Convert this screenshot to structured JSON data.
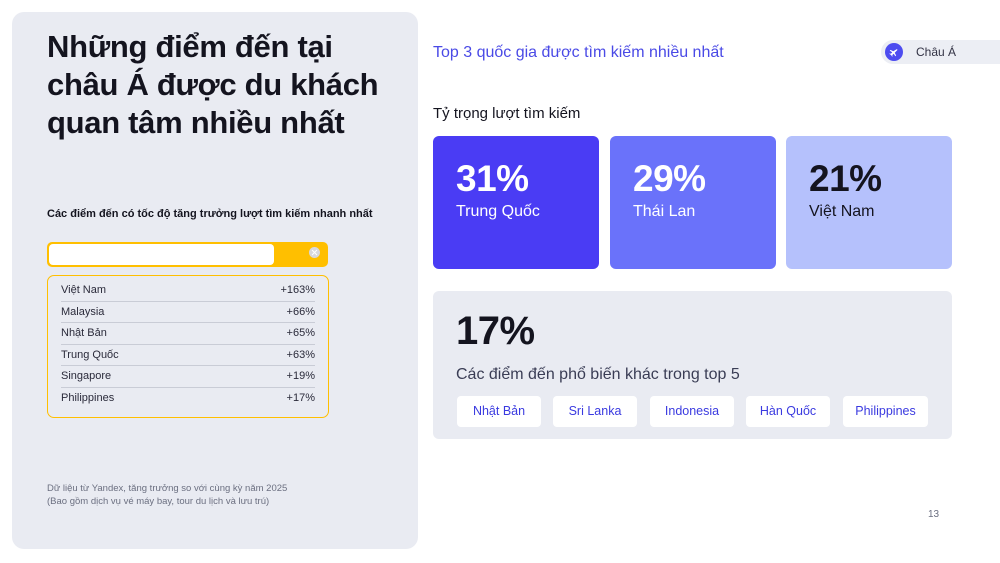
{
  "left": {
    "title": "Những điểm đến tại châu Á được du khách quan tâm nhiều nhất",
    "subheading": "Các điểm đến có tốc độ tăng trưởng lượt tìm kiếm nhanh nhất",
    "search": {
      "value": ""
    },
    "growth": [
      {
        "name": "Việt Nam",
        "value": "+163%"
      },
      {
        "name": "Malaysia",
        "value": "+66%"
      },
      {
        "name": "Nhật Bản",
        "value": "+65%"
      },
      {
        "name": "Trung Quốc",
        "value": "+63%"
      },
      {
        "name": "Singapore",
        "value": "+19%"
      },
      {
        "name": "Philippines",
        "value": "+17%"
      }
    ],
    "footnote_line1": "Dữ liệu từ Yandex, tăng trưởng so với cùng kỳ năm 2025",
    "footnote_line2": "(Bao gồm dịch vụ vé máy bay, tour du lịch và lưu trú)"
  },
  "right": {
    "section_title": "Top 3 quốc gia được tìm kiếm nhiều nhất",
    "region_chip": {
      "label": "Châu Á",
      "icon": "plane-icon"
    },
    "share_title": "Tỷ trọng lượt tìm kiếm",
    "top3": [
      {
        "value": "31%",
        "name": "Trung Quốc",
        "color": "#4a3cf4"
      },
      {
        "value": "29%",
        "name": "Thái Lan",
        "color": "#6a72fa"
      },
      {
        "value": "21%",
        "name": "Việt Nam",
        "color": "#b5c1fc"
      }
    ],
    "others": {
      "value": "17%",
      "caption": "Các điểm đến phổ biến khác trong top 5",
      "chips": [
        "Nhật Bản",
        "Sri Lanka",
        "Indonesia",
        "Hàn Quốc",
        "Philippines"
      ]
    }
  },
  "page_number": "13",
  "colors": {
    "accent": "#4a3cf4",
    "highlight": "#ffbf00",
    "panel": "#e9ebf2"
  }
}
